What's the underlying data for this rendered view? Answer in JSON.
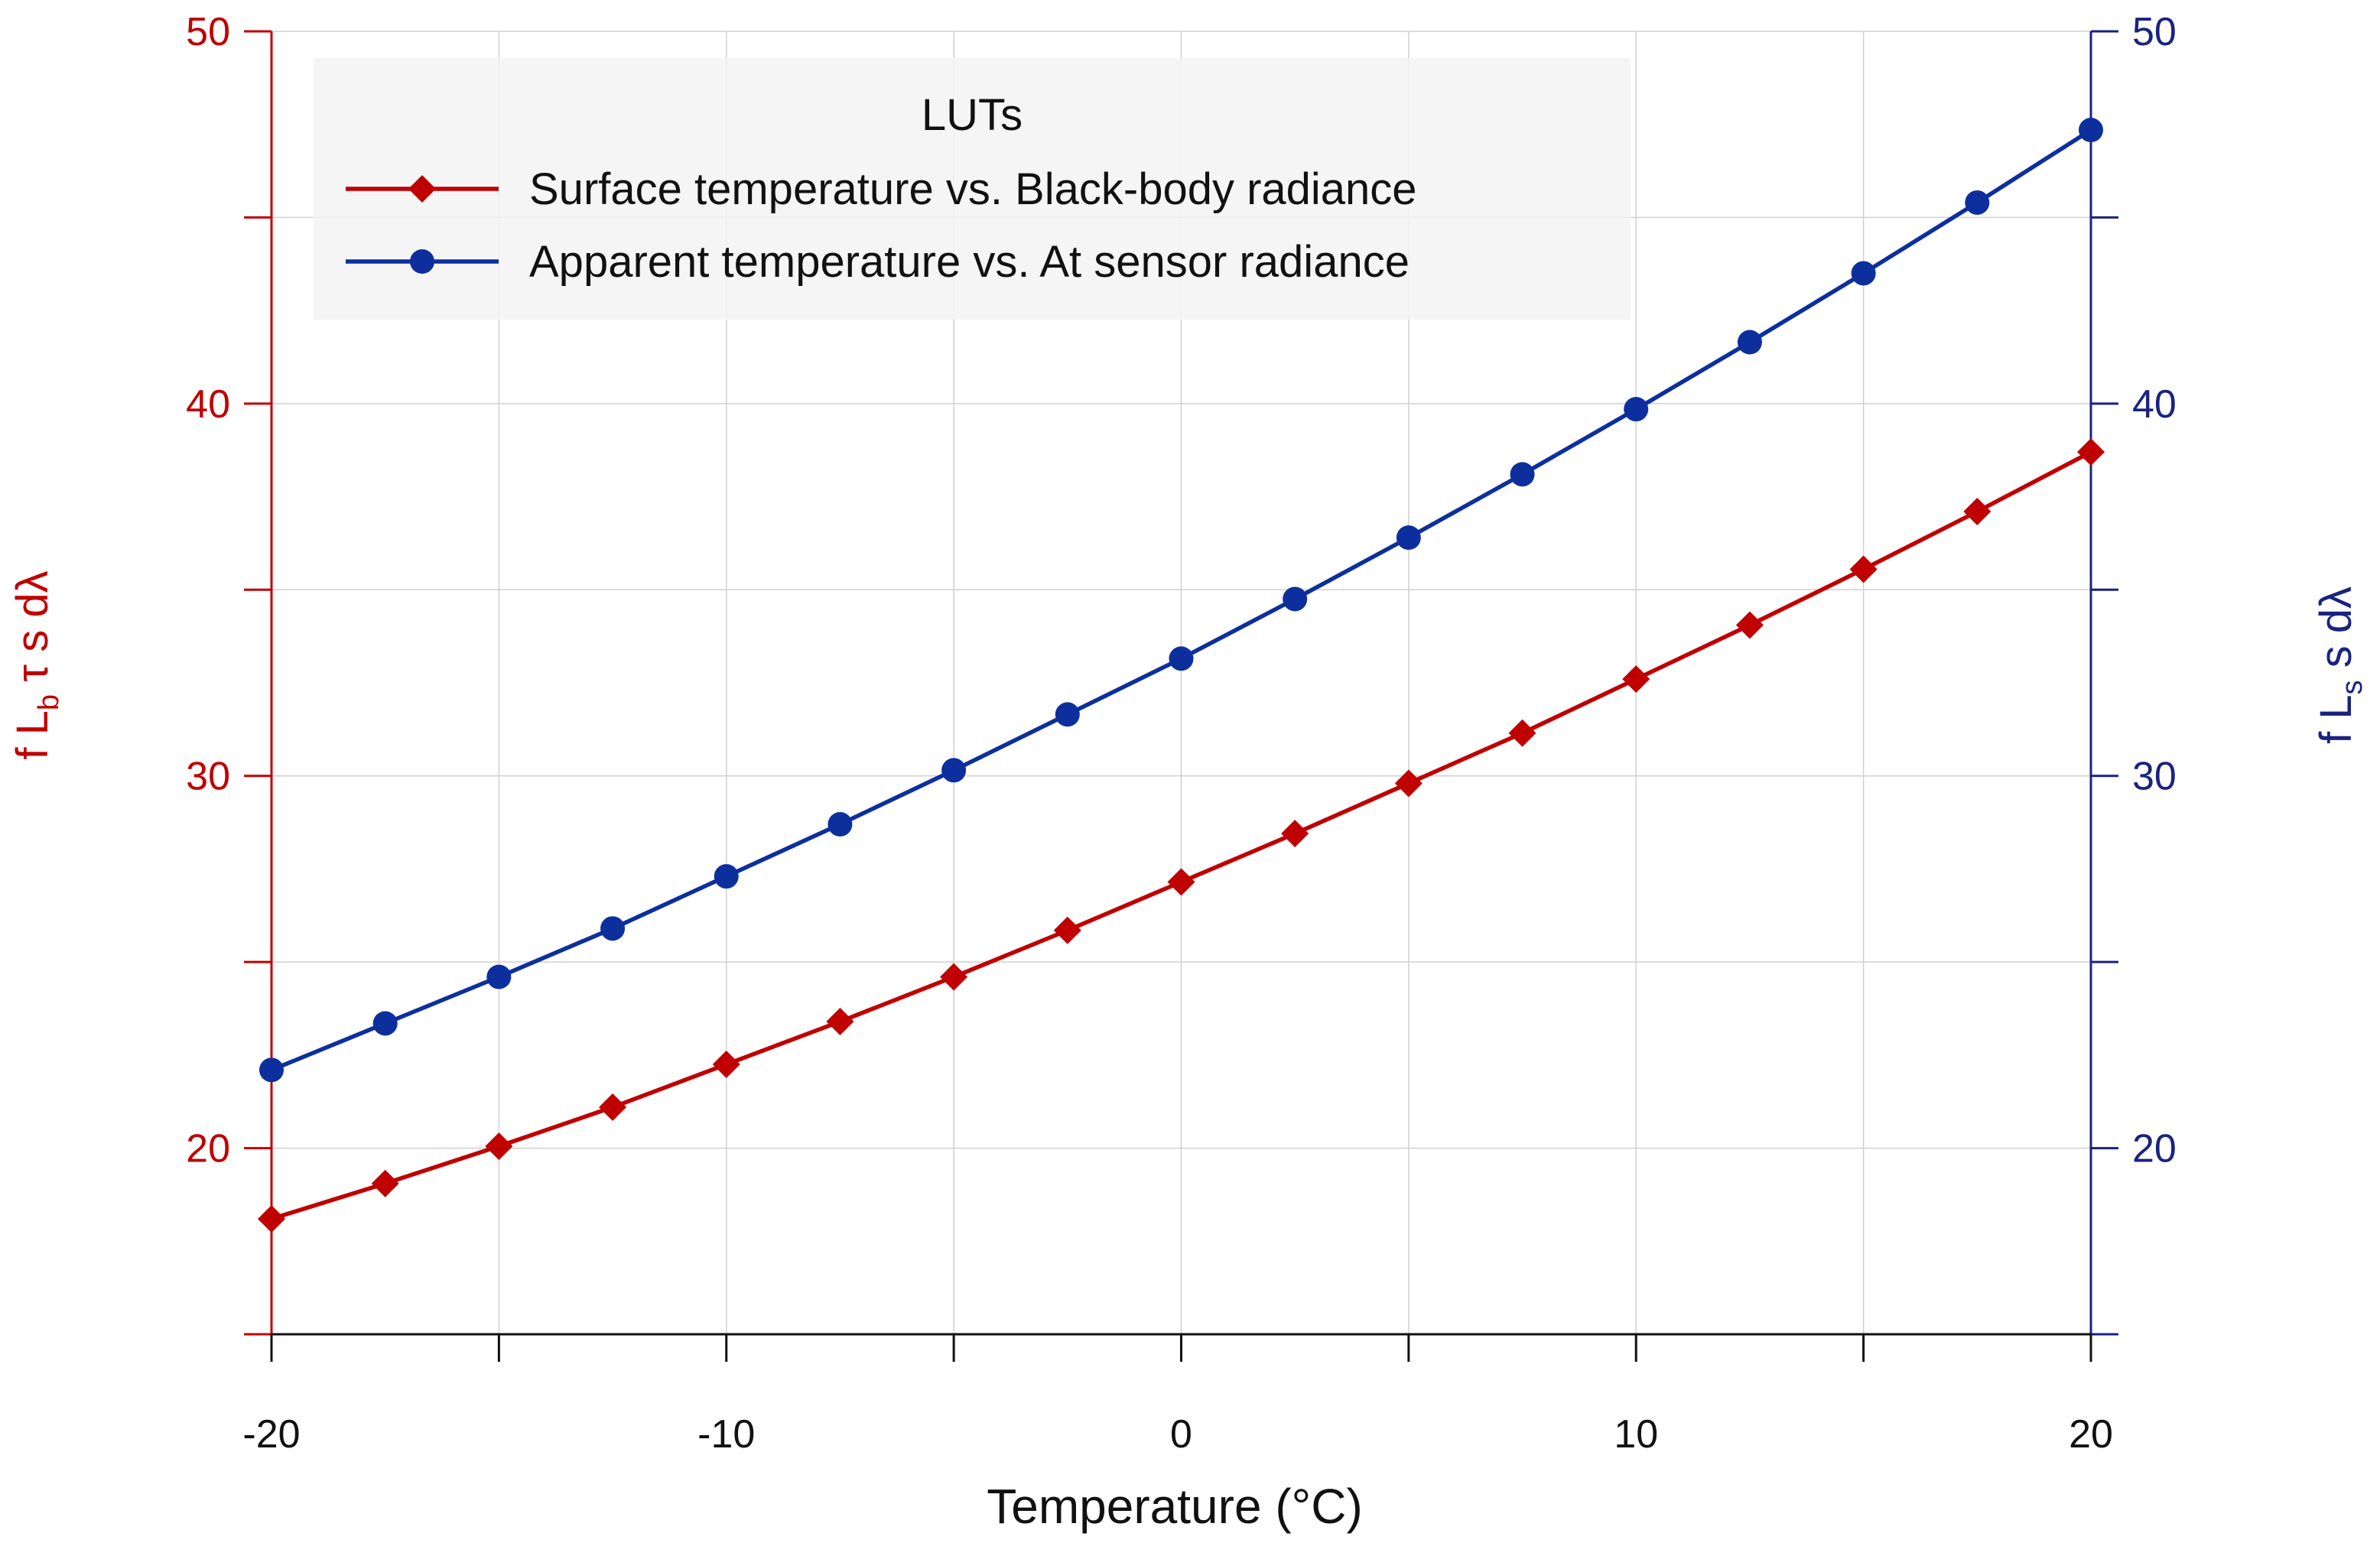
{
  "chart_data": {
    "type": "line",
    "title": "",
    "xlabel": "Temperature (°C)",
    "x_ticks": [
      "-20",
      "-10",
      "0",
      "10",
      "20"
    ],
    "xlim": [
      -20,
      20
    ],
    "x": [
      -20,
      -17.5,
      -15,
      -12.5,
      -10,
      -7.5,
      -5,
      -2.5,
      0,
      2.5,
      5,
      7.5,
      10,
      12.5,
      15,
      17.5,
      20
    ],
    "y_left": {
      "label_parts": [
        "f  L",
        "b",
        " τ s dλ"
      ],
      "ticks": [
        "20",
        "30",
        "40",
        "50"
      ],
      "ylim": [
        15,
        50
      ],
      "color": "#c00000"
    },
    "y_right": {
      "label_parts": [
        "f  L",
        "s",
        " s dλ"
      ],
      "ticks": [
        "20",
        "30",
        "40",
        "50"
      ],
      "ylim": [
        15,
        50
      ],
      "color": "#1a237e"
    },
    "grid": true,
    "legend": {
      "title": "LUTs",
      "placement": "top-left"
    },
    "series": [
      {
        "name": "Surface temperature vs. Black-body radiance",
        "axis": "left",
        "marker": "diamond",
        "color": "#c00000",
        "values": [
          18.1,
          19.05,
          20.05,
          21.1,
          22.25,
          23.4,
          24.6,
          25.85,
          27.15,
          28.45,
          29.8,
          31.15,
          32.6,
          34.05,
          35.55,
          37.1,
          38.7
        ]
      },
      {
        "name": "Apparent temperature vs. At sensor radiance",
        "axis": "right",
        "marker": "circle",
        "color": "#0d2f9e",
        "values": [
          22.1,
          23.35,
          24.6,
          25.9,
          27.3,
          28.7,
          30.15,
          31.65,
          33.15,
          34.75,
          36.4,
          38.1,
          39.85,
          41.65,
          43.5,
          45.4,
          47.35
        ]
      }
    ]
  }
}
